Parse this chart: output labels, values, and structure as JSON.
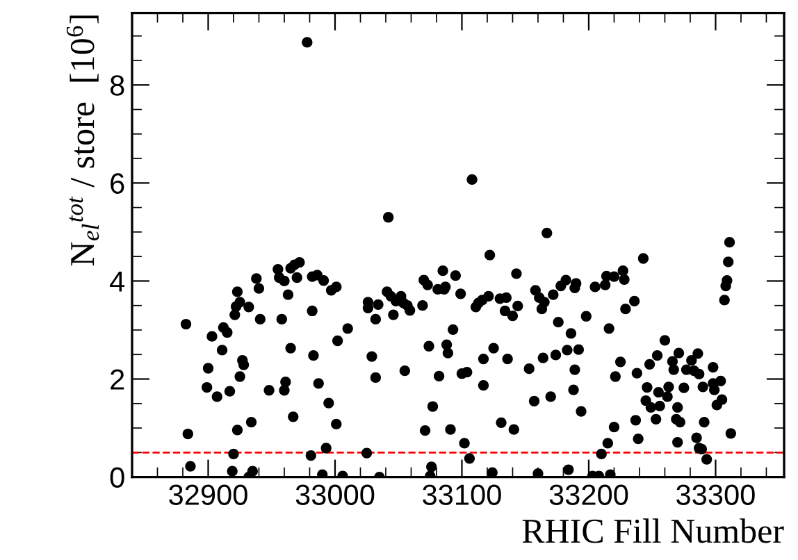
{
  "chart_data": {
    "type": "scatter",
    "xlabel": "RHIC Fill Number",
    "ylabel": "N$_{el}$$^{tot}$ / store  [10$^{6}$]",
    "xlim": [
      32840,
      33354
    ],
    "ylim": [
      0,
      9.47
    ],
    "xticks": [
      32900,
      33000,
      33100,
      33200,
      33300
    ],
    "yticks": [
      0,
      2,
      4,
      6,
      8
    ],
    "marker": "circle",
    "grid": false,
    "legend": false,
    "ref_lines": [
      {
        "axis": "y",
        "value": 0.5,
        "label": null,
        "color": "#ff0000",
        "line_style": "dashed"
      }
    ],
    "series": [
      {
        "color": "#000000",
        "x": [
          32882.5,
          32884,
          32886,
          32900,
          32903,
          32899,
          32907,
          32912,
          32915,
          32911,
          32917,
          32921,
          32922,
          32923,
          32925,
          32927,
          32928,
          32925,
          32923,
          32920,
          32919,
          32932,
          32934,
          32935,
          32932,
          32938,
          32940,
          32941,
          32948,
          32955,
          32956,
          32960,
          32963,
          32958,
          32961,
          32960,
          32965,
          32967,
          32965,
          32968,
          32972,
          32970,
          32978,
          32982,
          32983,
          32982,
          32986,
          32991,
          32997,
          33001,
          33002,
          33010,
          32987,
          32995,
          33001,
          32993,
          32981,
          32990,
          33006,
          33026,
          33026,
          33032,
          33029,
          33032,
          33025,
          33035,
          33034,
          33042,
          33041,
          33044,
          33046,
          33048,
          33052,
          33054,
          33057,
          33059,
          33055,
          33069,
          33070,
          33073,
          33074,
          33077,
          33071,
          33076,
          33075,
          33081,
          33085,
          33086,
          33087,
          33082,
          33088,
          33089,
          33093,
          33091,
          33095,
          33099,
          33100,
          33104,
          33102,
          33106,
          33108,
          33111,
          33113,
          33116,
          33121,
          33117,
          33125,
          33117,
          33122,
          33124,
          33130,
          33135,
          33134,
          33140,
          33136,
          33131,
          33141,
          33143,
          33144,
          33153,
          33157,
          33158,
          33161,
          33164,
          33163,
          33165,
          33160,
          33167,
          33170,
          33172,
          33176,
          33174,
          33178,
          33182,
          33186,
          33183,
          33189,
          33190,
          33188,
          33189,
          33192,
          33194,
          33184,
          33198,
          33205,
          33213,
          33214,
          33220,
          33227,
          33228,
          33236,
          33229,
          33243,
          33216,
          33225,
          33221,
          33220,
          33215,
          33210,
          33203,
          33208,
          33217,
          33237,
          33239,
          33238,
          33246,
          33248,
          33245,
          33249,
          33254,
          33255,
          33253,
          33256,
          33260,
          33262,
          33263,
          33266,
          33267,
          33271,
          33270,
          33269,
          33272,
          33270,
          33275,
          33277,
          33281,
          33283,
          33286,
          33287,
          33290,
          33291,
          33285,
          33287,
          33289,
          33293,
          33298,
          33299,
          33298,
          33301,
          33304,
          33305,
          33307,
          33308,
          33309,
          33310,
          33311,
          33312
        ],
        "values": [
          3.12,
          0.88,
          0.22,
          2.22,
          2.87,
          1.83,
          1.64,
          3.05,
          2.95,
          2.59,
          1.75,
          3.31,
          3.48,
          3.78,
          3.57,
          2.38,
          2.29,
          2.05,
          0.96,
          0.47,
          0.12,
          3.47,
          1.12,
          0.12,
          0.0,
          4.05,
          3.85,
          3.22,
          1.77,
          4.24,
          4.07,
          4.0,
          3.72,
          3.22,
          1.94,
          1.77,
          2.63,
          1.23,
          4.26,
          4.33,
          4.38,
          4.07,
          8.87,
          3.39,
          2.48,
          4.09,
          4.12,
          4.01,
          3.81,
          3.88,
          2.78,
          3.03,
          1.91,
          1.51,
          1.08,
          0.59,
          0.44,
          0.05,
          0.02,
          3.57,
          3.45,
          3.22,
          2.46,
          2.03,
          0.49,
          0.0,
          3.52,
          5.3,
          3.78,
          3.69,
          3.31,
          3.59,
          3.69,
          3.55,
          3.5,
          3.4,
          2.17,
          3.5,
          4.02,
          3.92,
          2.67,
          1.44,
          0.95,
          0.21,
          0.02,
          3.83,
          4.21,
          3.83,
          3.88,
          2.06,
          2.7,
          2.53,
          3.01,
          0.97,
          4.11,
          3.74,
          2.11,
          2.14,
          0.69,
          0.38,
          6.07,
          3.47,
          3.55,
          3.61,
          3.69,
          2.41,
          2.63,
          1.87,
          4.53,
          0.09,
          3.64,
          3.66,
          3.39,
          3.29,
          2.41,
          1.11,
          0.97,
          4.15,
          3.49,
          2.21,
          1.55,
          3.81,
          3.66,
          2.43,
          3.43,
          3.57,
          0.07,
          4.98,
          1.64,
          3.72,
          3.16,
          2.49,
          3.9,
          4.02,
          2.93,
          2.59,
          3.86,
          3.95,
          1.78,
          2.19,
          2.6,
          1.34,
          0.15,
          3.28,
          3.88,
          3.92,
          4.1,
          4.09,
          4.21,
          4.03,
          3.59,
          3.43,
          4.46,
          3.03,
          2.35,
          2.05,
          1.02,
          0.69,
          0.47,
          0.02,
          0.02,
          0.05,
          1.16,
          0.78,
          2.12,
          1.83,
          2.3,
          1.56,
          1.42,
          2.48,
          1.73,
          1.18,
          1.45,
          2.79,
          1.64,
          1.84,
          2.36,
          2.19,
          2.53,
          1.42,
          1.18,
          1.12,
          0.71,
          1.82,
          2.19,
          2.38,
          2.17,
          2.52,
          2.1,
          1.84,
          1.12,
          0.8,
          0.59,
          0.57,
          0.36,
          2.24,
          1.78,
          1.91,
          1.47,
          1.96,
          1.58,
          3.61,
          3.9,
          4.01,
          4.39,
          4.79,
          0.89
        ]
      }
    ]
  }
}
